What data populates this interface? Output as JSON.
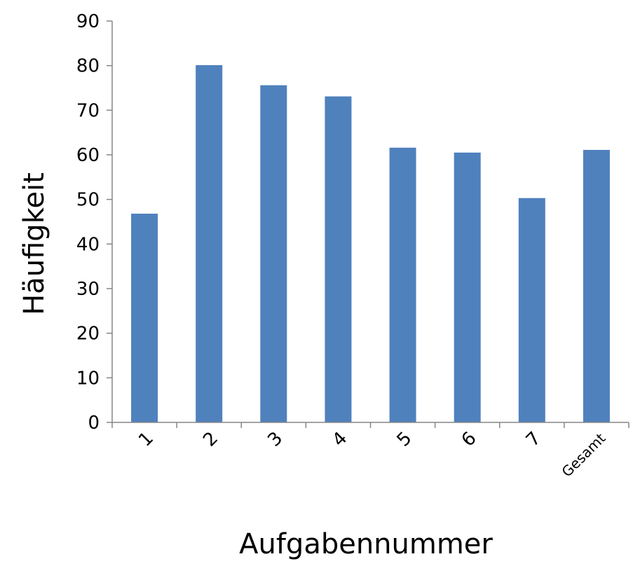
{
  "chart_data": {
    "type": "bar",
    "categories": [
      "1",
      "2",
      "3",
      "4",
      "5",
      "6",
      "7",
      "Gesamt"
    ],
    "values": [
      46.8,
      80.1,
      75.6,
      73.1,
      61.6,
      60.5,
      50.3,
      61.1
    ],
    "title": "",
    "xlabel": "Aufgabennummer",
    "ylabel": "Häufigkeit",
    "ylim": [
      0,
      90
    ],
    "yticks": [
      "0",
      "10",
      "20",
      "30",
      "40",
      "50",
      "60",
      "70",
      "80",
      "90"
    ],
    "bar_color": "#4f81bd",
    "grid": false,
    "legend": "none"
  }
}
